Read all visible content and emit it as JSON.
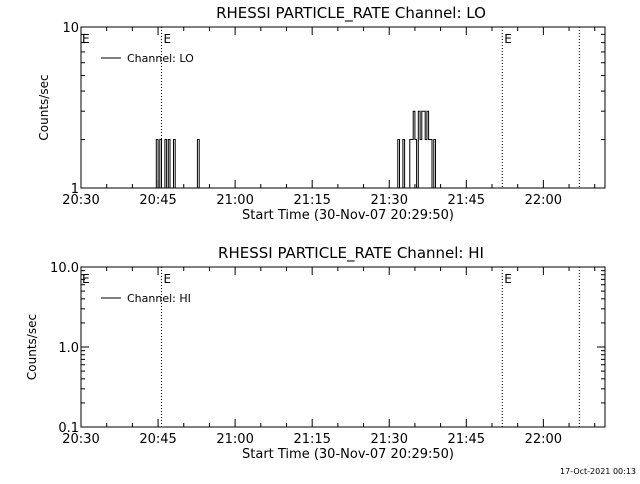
{
  "chart_data": [
    {
      "type": "line",
      "title": "RHESSI PARTICLE_RATE Channel: LO",
      "xlabel": "Start Time (30-Nov-07 20:29:50)",
      "ylabel": "Counts/sec",
      "xlim": [
        "20:30",
        "22:12"
      ],
      "xticks": [
        "20:30",
        "20:45",
        "21:00",
        "21:15",
        "21:30",
        "21:45",
        "22:00"
      ],
      "ylim": [
        1,
        10
      ],
      "yscale": "log",
      "yticks": [
        "1",
        "10"
      ],
      "legend": {
        "label": "Channel: LO",
        "position": "top-left"
      },
      "markers": [
        {
          "time": "20:45:40",
          "label": "E"
        },
        {
          "time": "21:52",
          "label": "E"
        },
        {
          "time": "22:07",
          "label": ""
        }
      ],
      "edge_label": "E",
      "series": [
        {
          "values": [
            [
              "20:30:00",
              1
            ],
            [
              "20:44:40",
              1
            ],
            [
              "20:44:40",
              2
            ],
            [
              "20:45:00",
              2
            ],
            [
              "20:45:00",
              1
            ],
            [
              "20:45:20",
              1
            ],
            [
              "20:45:20",
              2
            ],
            [
              "20:45:40",
              2
            ],
            [
              "20:45:40",
              1
            ],
            [
              "20:46:20",
              1
            ],
            [
              "20:46:20",
              2
            ],
            [
              "20:46:40",
              2
            ],
            [
              "20:46:40",
              1
            ],
            [
              "20:47:00",
              1
            ],
            [
              "20:47:00",
              2
            ],
            [
              "20:47:20",
              2
            ],
            [
              "20:47:20",
              1
            ],
            [
              "20:48:00",
              1
            ],
            [
              "20:48:00",
              2
            ],
            [
              "20:48:20",
              2
            ],
            [
              "20:48:20",
              1
            ],
            [
              "20:52:40",
              1
            ],
            [
              "20:52:40",
              2
            ],
            [
              "20:53:00",
              2
            ],
            [
              "20:53:00",
              1
            ],
            [
              "21:31:40",
              1
            ],
            [
              "21:31:40",
              2
            ],
            [
              "21:32:00",
              2
            ],
            [
              "21:32:00",
              1
            ],
            [
              "21:32:40",
              1
            ],
            [
              "21:32:40",
              2
            ],
            [
              "21:33:00",
              2
            ],
            [
              "21:33:00",
              1
            ],
            [
              "21:34:00",
              1
            ],
            [
              "21:34:00",
              2
            ],
            [
              "21:34:40",
              2
            ],
            [
              "21:34:40",
              3
            ],
            [
              "21:35:00",
              3
            ],
            [
              "21:35:00",
              2
            ],
            [
              "21:35:20",
              2
            ],
            [
              "21:35:20",
              1
            ],
            [
              "21:35:40",
              1
            ],
            [
              "21:35:40",
              3
            ],
            [
              "21:36:00",
              3
            ],
            [
              "21:36:00",
              2
            ],
            [
              "21:36:20",
              2
            ],
            [
              "21:36:20",
              3
            ],
            [
              "21:37:00",
              3
            ],
            [
              "21:37:00",
              2
            ],
            [
              "21:37:20",
              2
            ],
            [
              "21:37:20",
              3
            ],
            [
              "21:37:40",
              3
            ],
            [
              "21:37:40",
              2
            ],
            [
              "21:38:20",
              2
            ],
            [
              "21:38:20",
              1
            ],
            [
              "21:38:40",
              1
            ],
            [
              "21:38:40",
              2
            ],
            [
              "21:39:00",
              2
            ],
            [
              "21:39:00",
              1
            ],
            [
              "21:52:00",
              1
            ]
          ]
        }
      ]
    },
    {
      "type": "line",
      "title": "RHESSI PARTICLE_RATE Channel: HI",
      "xlabel": "Start Time (30-Nov-07 20:29:50)",
      "ylabel": "Counts/sec",
      "xlim": [
        "20:30",
        "22:12"
      ],
      "xticks": [
        "20:30",
        "20:45",
        "21:00",
        "21:15",
        "21:30",
        "21:45",
        "22:00"
      ],
      "ylim": [
        0.1,
        10
      ],
      "yscale": "log",
      "yticks": [
        "0.1",
        "1.0",
        "10.0"
      ],
      "legend": {
        "label": "Channel: HI",
        "position": "top-left"
      },
      "markers": [
        {
          "time": "20:45:40",
          "label": "E"
        },
        {
          "time": "21:52",
          "label": "E"
        },
        {
          "time": "22:07",
          "label": ""
        }
      ],
      "edge_label": "E",
      "series": [
        {
          "values": []
        }
      ]
    }
  ],
  "timestamp": "17-Oct-2021 00:13"
}
